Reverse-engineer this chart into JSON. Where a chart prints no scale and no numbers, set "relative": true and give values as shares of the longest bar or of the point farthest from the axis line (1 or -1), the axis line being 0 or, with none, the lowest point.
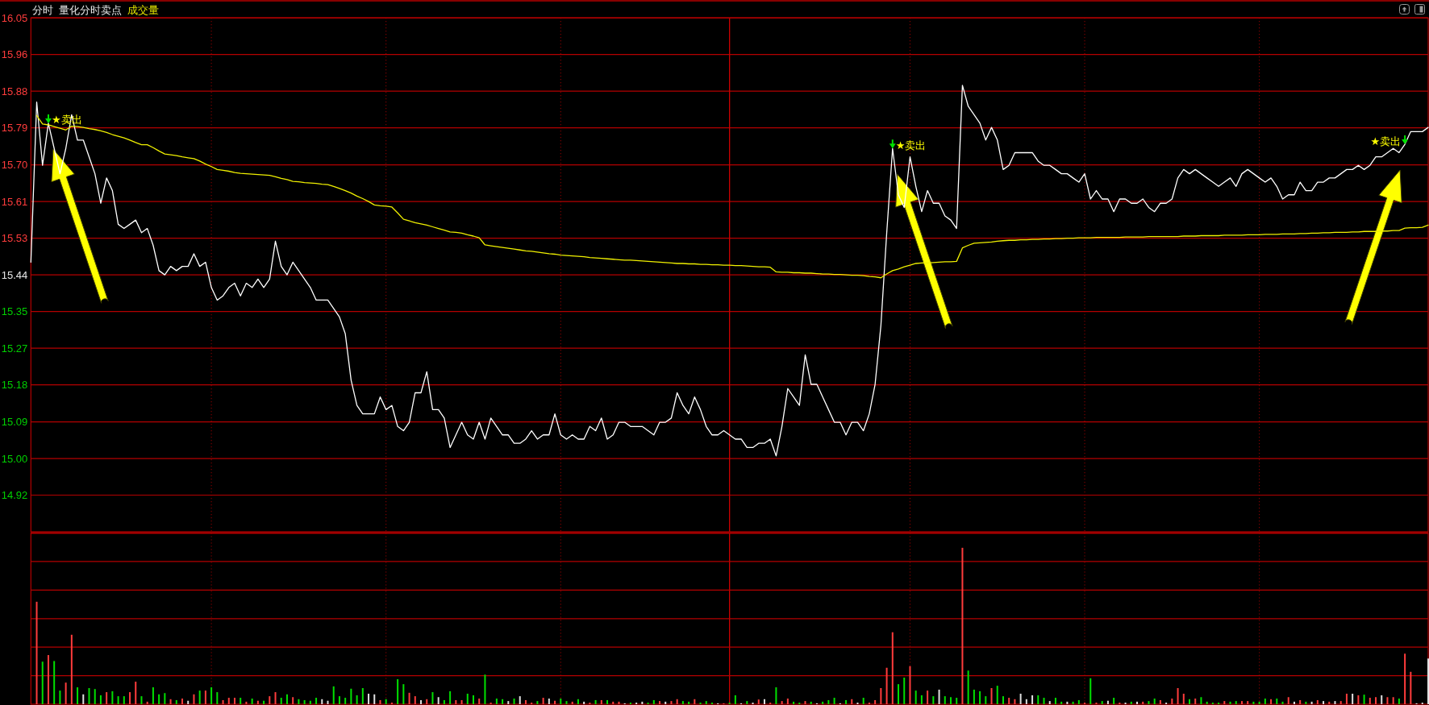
{
  "chart_data": [
    {
      "type": "line",
      "title": "分时",
      "subtitle": "量化分时卖点",
      "annotations": [
        "成交量"
      ],
      "categories": [
        null,
        null,
        null,
        null,
        null,
        null,
        null,
        null,
        null,
        null,
        null,
        null,
        null,
        null,
        null,
        null,
        null,
        null,
        null,
        null,
        null,
        null,
        null,
        null,
        null,
        null,
        null,
        null,
        null,
        null,
        null,
        null,
        null,
        null,
        null,
        null,
        null,
        null,
        null,
        null,
        null,
        null,
        null,
        null,
        null,
        null,
        null,
        null,
        null,
        null,
        null,
        null,
        null,
        null,
        null,
        null,
        null,
        null,
        null,
        null,
        null,
        null,
        null,
        null,
        null,
        null,
        null,
        null,
        null,
        null,
        null,
        null,
        null,
        null,
        null,
        null,
        null,
        null,
        null,
        null,
        null,
        null,
        null,
        null,
        null,
        null,
        null,
        null,
        null,
        null,
        null,
        null,
        null,
        null,
        null,
        null,
        null,
        null,
        null,
        null,
        null,
        null,
        null,
        null,
        null,
        null,
        null,
        null,
        null,
        null,
        null,
        null,
        null,
        null,
        null,
        null,
        null,
        null,
        null,
        null,
        null,
        null,
        null,
        null,
        null,
        null,
        null,
        null,
        null,
        null,
        null,
        null,
        null,
        null,
        null,
        null,
        null,
        null,
        null,
        null,
        null,
        null,
        null,
        null,
        null,
        null,
        null,
        null,
        null,
        null,
        null,
        null,
        null,
        null,
        null,
        null,
        null,
        null,
        null,
        null,
        null,
        null,
        null,
        null,
        null,
        null,
        null,
        null,
        null,
        null,
        null,
        null,
        null,
        null,
        null,
        null,
        null,
        null,
        null,
        null,
        null,
        null,
        null,
        null,
        null,
        null,
        null,
        null,
        null,
        null,
        null,
        null,
        null,
        null,
        null,
        null,
        null,
        null,
        null,
        null,
        null,
        null,
        null,
        null,
        null,
        null,
        null,
        null,
        null,
        null,
        null,
        null,
        null,
        null,
        null,
        null,
        null,
        null,
        null,
        null,
        null,
        null,
        null,
        null,
        null,
        null,
        null,
        null,
        null,
        null,
        null,
        null,
        null,
        null,
        null,
        null,
        null,
        null,
        null,
        null,
        null
      ],
      "ylim": [
        14.83,
        16.05
      ],
      "yticks": [
        {
          "value": 14.917,
          "label": "14.92"
        },
        {
          "value": 15.004,
          "label": "15.00"
        },
        {
          "value": 15.091,
          "label": "15.09"
        },
        {
          "value": 15.179,
          "label": "15.18"
        },
        {
          "value": 15.266,
          "label": "15.27"
        },
        {
          "value": 15.353,
          "label": "15.35"
        },
        {
          "value": 15.44,
          "label": "15.44"
        },
        {
          "value": 15.527,
          "label": "15.53"
        },
        {
          "value": 15.614,
          "label": "15.61"
        },
        {
          "value": 15.701,
          "label": "15.70"
        },
        {
          "value": 15.789,
          "label": "15.79"
        },
        {
          "value": 15.876,
          "label": "15.88"
        },
        {
          "value": 15.963,
          "label": "15.96"
        },
        {
          "value": 16.05,
          "label": "16.05"
        }
      ],
      "grid": true,
      "series": [
        {
          "color": "#ffffff",
          "values": [
            15.47,
            15.85,
            15.7,
            15.8,
            15.74,
            15.68,
            15.74,
            15.82,
            15.76,
            15.76,
            15.72,
            15.68,
            15.61,
            15.67,
            15.64,
            15.56,
            15.55,
            15.56,
            15.57,
            15.54,
            15.55,
            15.51,
            15.45,
            15.44,
            15.46,
            15.45,
            15.46,
            15.46,
            15.49,
            15.46,
            15.47,
            15.41,
            15.38,
            15.39,
            15.41,
            15.42,
            15.39,
            15.42,
            15.41,
            15.43,
            15.41,
            15.43,
            15.52,
            15.46,
            15.44,
            15.47,
            15.45,
            15.43,
            15.41,
            15.38,
            15.38,
            15.38,
            15.36,
            15.34,
            15.3,
            15.19,
            15.13,
            15.11,
            15.11,
            15.11,
            15.15,
            15.12,
            15.13,
            15.08,
            15.07,
            15.09,
            15.16,
            15.16,
            15.21,
            15.12,
            15.12,
            15.1,
            15.03,
            15.06,
            15.09,
            15.06,
            15.05,
            15.09,
            15.05,
            15.1,
            15.08,
            15.06,
            15.06,
            15.04,
            15.04,
            15.05,
            15.07,
            15.05,
            15.06,
            15.06,
            15.11,
            15.06,
            15.05,
            15.06,
            15.05,
            15.05,
            15.08,
            15.07,
            15.1,
            15.05,
            15.06,
            15.09,
            15.09,
            15.08,
            15.08,
            15.08,
            15.07,
            15.06,
            15.09,
            15.09,
            15.1,
            15.16,
            15.13,
            15.11,
            15.15,
            15.12,
            15.08,
            15.06,
            15.06,
            15.07,
            15.06,
            15.05,
            15.05,
            15.03,
            15.03,
            15.04,
            15.04,
            15.05,
            15.01,
            15.08,
            15.17,
            15.15,
            15.13,
            15.25,
            15.18,
            15.18,
            15.15,
            15.12,
            15.09,
            15.09,
            15.06,
            15.09,
            15.09,
            15.07,
            15.11,
            15.18,
            15.32,
            15.54,
            15.74,
            15.63,
            15.6,
            15.72,
            15.65,
            15.59,
            15.64,
            15.61,
            15.61,
            15.58,
            15.57,
            15.55,
            15.89,
            15.84,
            15.82,
            15.8,
            15.76,
            15.79,
            15.76,
            15.69,
            15.7,
            15.73,
            15.73,
            15.73,
            15.73,
            15.71,
            15.7,
            15.7,
            15.69,
            15.68,
            15.68,
            15.67,
            15.66,
            15.68,
            15.62,
            15.64,
            15.62,
            15.62,
            15.59,
            15.62,
            15.62,
            15.61,
            15.61,
            15.62,
            15.6,
            15.59,
            15.61,
            15.61,
            15.62,
            15.67,
            15.69,
            15.68,
            15.69,
            15.68,
            15.67,
            15.66,
            15.65,
            15.66,
            15.67,
            15.65,
            15.68,
            15.69,
            15.68,
            15.67,
            15.66,
            15.67,
            15.65,
            15.62,
            15.63,
            15.63,
            15.66,
            15.64,
            15.64,
            15.66,
            15.66,
            15.67,
            15.67,
            15.68,
            15.69,
            15.69,
            15.7,
            15.69,
            15.7,
            15.72,
            15.72,
            15.73,
            15.74,
            15.73,
            15.75,
            15.78,
            15.78,
            15.78,
            15.79
          ],
          "value_labels": [
            null,
            null,
            null,
            "★卖出",
            null,
            null,
            null,
            null,
            null,
            null,
            null,
            null,
            null,
            null,
            null,
            null,
            null,
            null,
            null,
            null,
            null,
            null,
            null,
            null,
            null,
            null,
            null,
            null,
            null,
            null,
            null,
            null,
            null,
            null,
            null,
            null,
            null,
            null,
            null,
            null,
            null,
            null,
            null,
            null,
            null,
            null,
            null,
            null,
            null,
            null,
            null,
            null,
            null,
            null,
            null,
            null,
            null,
            null,
            null,
            null,
            null,
            null,
            null,
            null,
            null,
            null,
            null,
            null,
            null,
            null,
            null,
            null,
            null,
            null,
            null,
            null,
            null,
            null,
            null,
            null,
            null,
            null,
            null,
            null,
            null,
            null,
            null,
            null,
            null,
            null,
            null,
            null,
            null,
            null,
            null,
            null,
            null,
            null,
            null,
            null,
            null,
            null,
            null,
            null,
            null,
            null,
            null,
            null,
            null,
            null,
            null,
            null,
            null,
            null,
            null,
            null,
            null,
            null,
            null,
            null,
            null,
            null,
            null,
            null,
            null,
            null,
            null,
            null,
            null,
            null,
            null,
            null,
            null,
            null,
            null,
            null,
            null,
            null,
            null,
            null,
            null,
            null,
            null,
            null,
            null,
            null,
            null,
            null,
            "★卖出",
            null,
            null,
            null,
            null,
            null,
            null,
            null,
            null,
            null,
            null,
            null,
            null,
            null,
            null,
            null,
            null,
            null,
            null,
            null,
            null,
            null,
            null,
            null,
            null,
            null,
            null,
            null,
            null,
            null,
            null,
            null,
            null,
            null,
            null,
            null,
            null,
            null,
            null,
            null,
            null,
            null,
            null,
            null,
            null,
            null,
            null,
            null,
            null,
            null,
            null,
            null,
            null,
            null,
            null,
            null,
            null,
            null,
            null,
            null,
            null,
            null,
            null,
            null,
            null,
            null,
            null,
            null,
            null,
            null,
            null,
            null,
            null,
            null,
            null,
            null,
            null,
            null,
            null,
            null,
            null,
            null,
            null,
            null,
            null,
            null,
            null,
            null,
            "★卖出",
            null,
            null,
            null,
            null
          ]
        },
        {
          "color": "#f0f000",
          "values": [
            null,
            15.818,
            15.798,
            15.796,
            15.792,
            15.788,
            15.784,
            15.793,
            15.792,
            15.79,
            15.787,
            15.785,
            15.782,
            15.778,
            15.773,
            15.769,
            15.765,
            15.76,
            15.754,
            15.749,
            15.749,
            15.742,
            15.734,
            15.727,
            15.725,
            15.723,
            15.72,
            15.718,
            15.716,
            15.71,
            15.703,
            15.697,
            15.69,
            15.688,
            15.686,
            15.683,
            15.681,
            15.68,
            15.679,
            15.678,
            15.677,
            15.676,
            15.673,
            15.669,
            15.666,
            15.662,
            15.661,
            15.659,
            15.658,
            15.657,
            15.655,
            15.654,
            15.65,
            15.645,
            15.64,
            15.634,
            15.627,
            15.621,
            15.614,
            15.606,
            15.604,
            15.603,
            15.601,
            15.587,
            15.572,
            15.568,
            15.564,
            15.561,
            15.558,
            15.554,
            15.55,
            15.546,
            15.542,
            15.541,
            15.539,
            15.535,
            15.532,
            15.528,
            15.511,
            15.509,
            15.507,
            15.505,
            15.503,
            15.501,
            15.499,
            15.497,
            15.496,
            15.494,
            15.492,
            15.49,
            15.489,
            15.487,
            15.486,
            15.485,
            15.484,
            15.483,
            15.481,
            15.48,
            15.479,
            15.478,
            15.477,
            15.476,
            15.475,
            15.475,
            15.474,
            15.473,
            15.472,
            15.471,
            15.47,
            15.469,
            15.468,
            15.467,
            15.467,
            15.466,
            15.466,
            15.465,
            15.465,
            15.464,
            15.464,
            15.463,
            15.463,
            15.462,
            15.462,
            15.461,
            15.46,
            15.459,
            15.459,
            15.458,
            15.447,
            15.446,
            15.446,
            15.445,
            15.445,
            15.444,
            15.444,
            15.443,
            15.442,
            15.442,
            15.441,
            15.441,
            15.44,
            15.439,
            15.439,
            15.438,
            15.436,
            15.435,
            15.433,
            15.442,
            15.45,
            15.454,
            15.459,
            15.463,
            15.467,
            15.468,
            15.468,
            15.469,
            15.47,
            15.471,
            15.471,
            15.472,
            15.504,
            15.51,
            15.515,
            15.516,
            15.517,
            15.518,
            15.52,
            15.521,
            15.522,
            15.522,
            15.523,
            15.523,
            15.524,
            15.524,
            15.525,
            15.525,
            15.526,
            15.526,
            15.527,
            15.527,
            15.528,
            15.528,
            15.528,
            15.529,
            15.529,
            15.529,
            15.529,
            15.529,
            15.53,
            15.53,
            15.53,
            15.53,
            15.531,
            15.531,
            15.531,
            15.531,
            15.531,
            15.531,
            15.532,
            15.532,
            15.532,
            15.533,
            15.533,
            15.533,
            15.533,
            15.534,
            15.534,
            15.534,
            15.534,
            15.535,
            15.535,
            15.535,
            15.536,
            15.536,
            15.536,
            15.537,
            15.537,
            15.537,
            15.538,
            15.538,
            15.539,
            15.539,
            15.54,
            15.54,
            15.541,
            15.541,
            15.541,
            15.542,
            15.542,
            15.543,
            15.543,
            15.543,
            15.544,
            15.544,
            15.545,
            15.545,
            15.551,
            15.552,
            15.552,
            15.553,
            15.558
          ]
        }
      ]
    },
    {
      "type": "bar",
      "relative": true,
      "grid": "x",
      "ref_lines": [
        {
          "axis": "y",
          "value": 0.182,
          "color": "#b40000"
        },
        {
          "axis": "y",
          "value": 0.365,
          "color": "#b40000"
        },
        {
          "axis": "y",
          "value": 0.547,
          "color": "#b40000"
        },
        {
          "axis": "y",
          "value": 0.73,
          "color": "#b40000"
        },
        {
          "axis": "y",
          "value": 0.912,
          "color": "#b40000"
        }
      ],
      "categories": [
        null,
        null,
        null,
        null,
        null,
        null,
        null,
        null,
        null,
        null,
        null,
        null,
        null,
        null,
        null,
        null,
        null,
        null,
        null,
        null,
        null,
        null,
        null,
        null,
        null,
        null,
        null,
        null,
        null,
        null,
        null,
        null,
        null,
        null,
        null,
        null,
        null,
        null,
        null,
        null,
        null,
        null,
        null,
        null,
        null,
        null,
        null,
        null,
        null,
        null,
        null,
        null,
        null,
        null,
        null,
        null,
        null,
        null,
        null,
        null,
        null,
        null,
        null,
        null,
        null,
        null,
        null,
        null,
        null,
        null,
        null,
        null,
        null,
        null,
        null,
        null,
        null,
        null,
        null,
        null,
        null,
        null,
        null,
        null,
        null,
        null,
        null,
        null,
        null,
        null,
        null,
        null,
        null,
        null,
        null,
        null,
        null,
        null,
        null,
        null,
        null,
        null,
        null,
        null,
        null,
        null,
        null,
        null,
        null,
        null,
        null,
        null,
        null,
        null,
        null,
        null,
        null,
        null,
        null,
        null,
        null,
        null,
        null,
        null,
        null,
        null,
        null,
        null,
        null,
        null,
        null,
        null,
        null,
        null,
        null,
        null,
        null,
        null,
        null,
        null,
        null,
        null,
        null,
        null,
        null,
        null,
        null,
        null,
        null,
        null,
        null,
        null,
        null,
        null,
        null,
        null,
        null,
        null,
        null,
        null,
        null,
        null,
        null,
        null,
        null,
        null,
        null,
        null,
        null,
        null,
        null,
        null,
        null,
        null,
        null,
        null,
        null,
        null,
        null,
        null,
        null,
        null,
        null,
        null,
        null,
        null,
        null,
        null,
        null,
        null,
        null,
        null,
        null,
        null,
        null,
        null,
        null,
        null,
        null,
        null,
        null,
        null,
        null,
        null,
        null,
        null,
        null,
        null,
        null,
        null,
        null,
        null,
        null,
        null,
        null,
        null,
        null,
        null,
        null,
        null,
        null,
        null,
        null,
        null,
        null,
        null,
        null,
        null,
        null,
        null,
        null,
        null,
        null,
        null,
        null,
        null,
        null,
        null,
        null,
        null,
        null
      ],
      "values": [
        null,
        0.655,
        0.272,
        0.314,
        0.276,
        0.087,
        0.138,
        0.444,
        0.108,
        0.063,
        0.103,
        0.097,
        0.057,
        0.077,
        0.083,
        0.051,
        0.051,
        0.077,
        0.144,
        0.051,
        0.016,
        0.108,
        0.063,
        0.071,
        0.032,
        0.026,
        0.036,
        0.022,
        0.063,
        0.087,
        0.087,
        0.108,
        0.077,
        0.026,
        0.041,
        0.041,
        0.041,
        0.016,
        0.036,
        0.022,
        0.022,
        0.051,
        0.077,
        0.041,
        0.063,
        0.045,
        0.032,
        0.026,
        0.022,
        0.041,
        0.032,
        0.022,
        0.114,
        0.051,
        0.041,
        0.099,
        0.057,
        0.103,
        0.067,
        0.063,
        0.026,
        0.032,
        0.01,
        0.16,
        0.128,
        0.073,
        0.051,
        0.026,
        0.032,
        0.077,
        0.045,
        0.026,
        0.083,
        0.026,
        0.026,
        0.067,
        0.057,
        0.036,
        0.189,
        0.01,
        0.036,
        0.032,
        0.02,
        0.036,
        0.051,
        0.026,
        0.01,
        0.02,
        0.041,
        0.036,
        0.022,
        0.036,
        0.02,
        0.016,
        0.032,
        0.016,
        0.01,
        0.026,
        0.026,
        0.026,
        0.016,
        0.016,
        0.006,
        0.01,
        0.01,
        0.016,
        0.01,
        0.026,
        0.02,
        0.016,
        0.02,
        0.032,
        0.02,
        0.016,
        0.032,
        0.01,
        0.02,
        0.01,
        0.006,
        0.006,
        0.01,
        0.057,
        0.006,
        0.02,
        0.01,
        0.03,
        0.032,
        0.01,
        0.108,
        0.02,
        0.036,
        0.016,
        0.01,
        0.02,
        0.016,
        0.006,
        0.016,
        0.026,
        0.041,
        0.006,
        0.026,
        0.032,
        0.01,
        0.041,
        0.01,
        0.026,
        0.103,
        0.233,
        0.46,
        0.128,
        0.17,
        0.243,
        0.087,
        0.057,
        0.087,
        0.051,
        0.093,
        0.051,
        0.045,
        0.041,
        1,
        0.215,
        0.093,
        0.083,
        0.051,
        0.103,
        0.118,
        0.051,
        0.041,
        0.032,
        0.067,
        0.032,
        0.057,
        0.057,
        0.041,
        0.02,
        0.041,
        0.016,
        0.016,
        0.016,
        0.026,
        0.01,
        0.166,
        0.01,
        0.02,
        0.022,
        0.041,
        0.01,
        0.01,
        0.016,
        0.016,
        0.016,
        0.02,
        0.036,
        0.026,
        0.01,
        0.036,
        0.103,
        0.067,
        0.032,
        0.036,
        0.045,
        0.016,
        0.01,
        0.01,
        0.02,
        0.016,
        0.02,
        0.02,
        0.02,
        0.016,
        0.016,
        0.036,
        0.032,
        0.036,
        0.016,
        0.045,
        0.016,
        0.026,
        0.016,
        0.016,
        0.026,
        0.02,
        0.016,
        0.02,
        0.02,
        0.067,
        0.067,
        0.057,
        0.061,
        0.041,
        0.045,
        0.057,
        0.045,
        0.045,
        0.036,
        0.323,
        0.207,
        0.006,
        0.01,
        0.292
      ],
      "colors": [
        null,
        "#ff3c3c",
        "#00e000",
        "#ff3c3c",
        "#00e000",
        "#00e000",
        "#ff3c3c",
        "#ff3c3c",
        "#00e000",
        "#e0e0e0",
        "#00e000",
        "#00e000",
        "#00e000",
        "#ff3c3c",
        "#00e000",
        "#00e000",
        "#00e000",
        "#ff3c3c",
        "#ff3c3c",
        "#00e000",
        "#ff3c3c",
        "#00e000",
        "#00e000",
        "#00e000",
        "#ff3c3c",
        "#00e000",
        "#ff3c3c",
        "#e0e0e0",
        "#ff3c3c",
        "#00e000",
        "#ff3c3c",
        "#00e000",
        "#00e000",
        "#ff3c3c",
        "#ff3c3c",
        "#ff3c3c",
        "#00e000",
        "#ff3c3c",
        "#00e000",
        "#ff3c3c",
        "#00e000",
        "#ff3c3c",
        "#ff3c3c",
        "#00e000",
        "#00e000",
        "#ff3c3c",
        "#00e000",
        "#00e000",
        "#00e000",
        "#00e000",
        "#e0e0e0",
        "#e0e0e0",
        "#00e000",
        "#00e000",
        "#00e000",
        "#00e000",
        "#00e000",
        "#00e000",
        "#e0e0e0",
        "#e0e0e0",
        "#ff3c3c",
        "#00e000",
        "#ff3c3c",
        "#00e000",
        "#00e000",
        "#ff3c3c",
        "#ff3c3c",
        "#e0e0e0",
        "#ff3c3c",
        "#00e000",
        "#e0e0e0",
        "#00e000",
        "#00e000",
        "#ff3c3c",
        "#ff3c3c",
        "#00e000",
        "#00e000",
        "#ff3c3c",
        "#00e000",
        "#ff3c3c",
        "#00e000",
        "#00e000",
        "#e0e0e0",
        "#00e000",
        "#e0e0e0",
        "#ff3c3c",
        "#ff3c3c",
        "#00e000",
        "#ff3c3c",
        "#e0e0e0",
        "#ff3c3c",
        "#00e000",
        "#00e000",
        "#ff3c3c",
        "#00e000",
        "#e0e0e0",
        "#ff3c3c",
        "#00e000",
        "#ff3c3c",
        "#00e000",
        "#ff3c3c",
        "#ff3c3c",
        "#e0e0e0",
        "#00e000",
        "#e0e0e0",
        "#e0e0e0",
        "#00e000",
        "#00e000",
        "#ff3c3c",
        "#e0e0e0",
        "#ff3c3c",
        "#ff3c3c",
        "#00e000",
        "#00e000",
        "#ff3c3c",
        "#00e000",
        "#00e000",
        "#00e000",
        "#e0e0e0",
        "#ff3c3c",
        "#00e000",
        "#00e000",
        "#e0e0e0",
        "#00e000",
        "#e0e0e0",
        "#ff3c3c",
        "#e0e0e0",
        "#ff3c3c",
        "#00e000",
        "#ff3c3c",
        "#ff3c3c",
        "#00e000",
        "#00e000",
        "#ff3c3c",
        "#00e000",
        "#e0e0e0",
        "#00e000",
        "#00e000",
        "#00e000",
        "#e0e0e0",
        "#00e000",
        "#ff3c3c",
        "#e0e0e0",
        "#00e000",
        "#ff3c3c",
        "#ff3c3c",
        "#ff3c3c",
        "#ff3c3c",
        "#ff3c3c",
        "#00e000",
        "#00e000",
        "#ff3c3c",
        "#00e000",
        "#00e000",
        "#ff3c3c",
        "#00e000",
        "#e0e0e0",
        "#00e000",
        "#00e000",
        "#00e000",
        "#ff3c3c",
        "#00e000",
        "#00e000",
        "#00e000",
        "#00e000",
        "#ff3c3c",
        "#00e000",
        "#00e000",
        "#ff3c3c",
        "#ff3c3c",
        "#e0e0e0",
        "#e0e0e0",
        "#e0e0e0",
        "#00e000",
        "#00e000",
        "#e0e0e0",
        "#00e000",
        "#00e000",
        "#e0e0e0",
        "#00e000",
        "#00e000",
        "#ff3c3c",
        "#00e000",
        "#ff3c3c",
        "#00e000",
        "#e0e0e0",
        "#00e000",
        "#ff3c3c",
        "#e0e0e0",
        "#00e000",
        "#e0e0e0",
        "#ff3c3c",
        "#00e000",
        "#00e000",
        "#ff3c3c",
        "#e0e0e0",
        "#ff3c3c",
        "#ff3c3c",
        "#ff3c3c",
        "#00e000",
        "#ff3c3c",
        "#00e000",
        "#00e000",
        "#00e000",
        "#00e000",
        "#ff3c3c",
        "#00e000",
        "#00e000",
        "#ff3c3c",
        "#ff3c3c",
        "#00e000",
        "#00e000",
        "#00e000",
        "#ff3c3c",
        "#00e000",
        "#00e000",
        "#ff3c3c",
        "#e0e0e0",
        "#ff3c3c",
        "#00e000",
        "#e0e0e0",
        "#ff3c3c",
        "#e0e0e0",
        "#ff3c3c",
        "#e0e0e0",
        "#ff3c3c",
        "#ff3c3c",
        "#e0e0e0",
        "#ff3c3c",
        "#00e000",
        "#ff3c3c",
        "#ff3c3c",
        "#e0e0e0",
        "#ff3c3c",
        "#ff3c3c",
        "#00e000",
        "#ff3c3c",
        "#ff3c3c",
        "#e0e0e0",
        "#e0e0e0",
        "#e0e0e0"
      ]
    }
  ]
}
